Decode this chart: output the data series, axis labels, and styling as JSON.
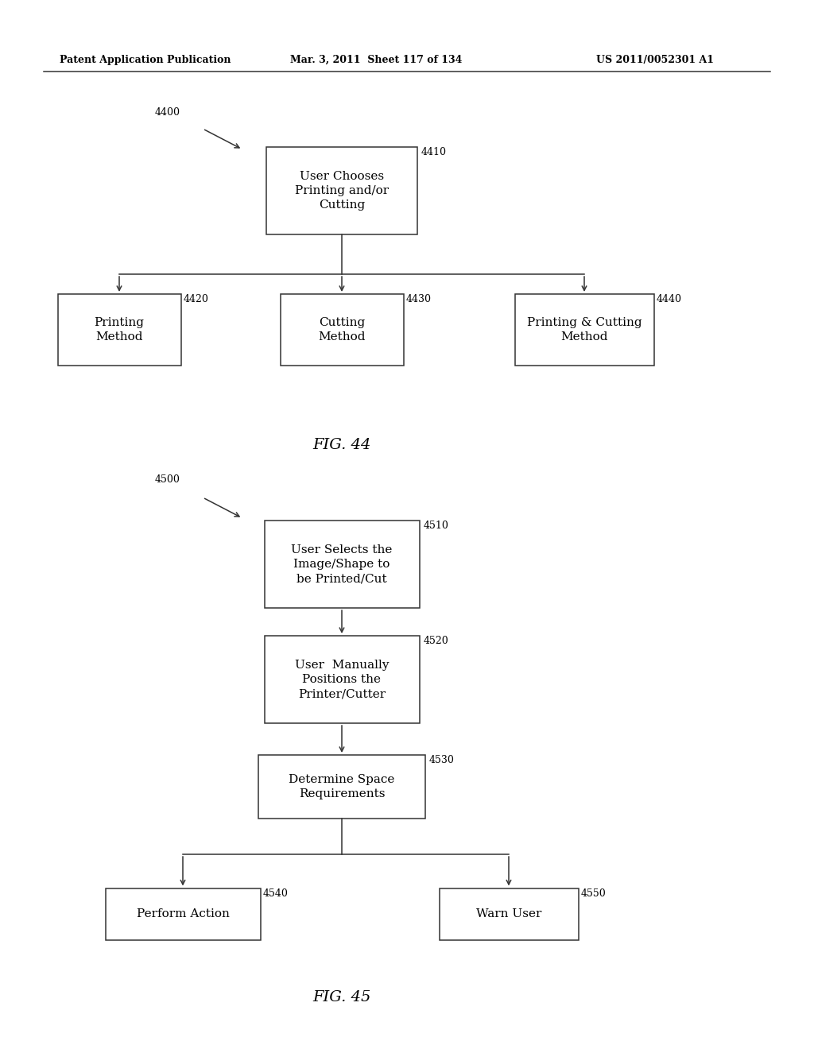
{
  "bg_color": "#ffffff",
  "header_left": "Patent Application Publication",
  "header_middle": "Mar. 3, 2011  Sheet 117 of 134",
  "header_right": "US 2011/0052301 A1",
  "fig44_label": "FIG. 44",
  "fig45_label": "FIG. 45"
}
